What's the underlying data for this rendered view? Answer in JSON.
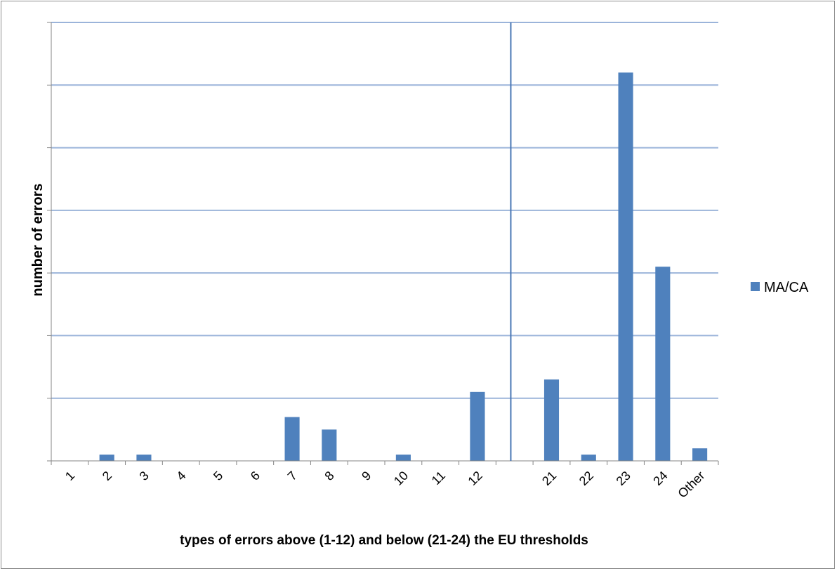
{
  "chart_data": {
    "type": "bar",
    "title": "",
    "xlabel": "types of errors above (1-12) and below (21-24) the EU thresholds",
    "ylabel": "number of errors",
    "categories": [
      "1",
      "2",
      "3",
      "4",
      "5",
      "6",
      "7",
      "8",
      "9",
      "10",
      "11",
      "12",
      "",
      "21",
      "22",
      "23",
      "24",
      "Other"
    ],
    "series": [
      {
        "name": "MA/CA",
        "color": "#4f81bd",
        "values": [
          0,
          1,
          1,
          0,
          0,
          0,
          7,
          5,
          0,
          1,
          0,
          11,
          0,
          13,
          1,
          62,
          31,
          2
        ]
      }
    ],
    "ylim": [
      0,
      70
    ],
    "y_major_step": 10,
    "y_tick_labels_shown": false,
    "gridlines": true,
    "separator_after_category": "12",
    "legend_position": "right",
    "colors": {
      "bar": "#4f81bd",
      "gridline": "#9bb4da",
      "axis": "#868686",
      "separator": "#4a77b4"
    }
  }
}
